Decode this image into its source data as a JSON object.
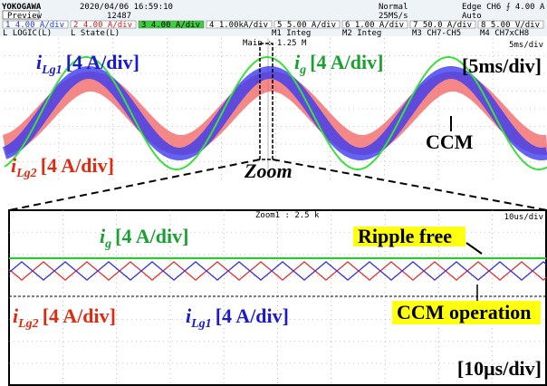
{
  "header": {
    "brand": "YOKOGAWA",
    "mode": "Preview",
    "datetime": "2020/04/06 16:59:10",
    "count": "12487",
    "trigger_mode": "Normal",
    "sample_rate": "25MS/s",
    "trigger": "Edge CH6 ⨍ 4.00 A",
    "trigger_auto": "Auto"
  },
  "channels": [
    "1 4.00 A/div",
    "2 4.00 A/div",
    "3 4.00 A/div",
    "4 1.00kA/div",
    "5 5.00 A/div",
    "6 1.00 A/div",
    "7 50.0 A/div",
    "8 5.00 V/div"
  ],
  "math": [
    "L LOGIC(L)",
    "L State(L)",
    "M1 Integ",
    "M2 Integ",
    "M3 CH7-CH5",
    "M4 CH7xCH8"
  ],
  "main_panel": {
    "info": "Main : 1.25 M",
    "timebase": "5ms/div",
    "labels": {
      "ilg1": {
        "symbol": "i",
        "subscript": "Lg1",
        "scale": "[4 A/div]"
      },
      "ig": {
        "symbol": "i",
        "subscript": "g",
        "scale": "[4 A/div]"
      },
      "ilg2": {
        "symbol": "i",
        "subscript": "Lg2",
        "scale": "[4 A/div]"
      }
    },
    "scale_note": "[5ms/div]",
    "ccm": "CCM",
    "zoom": "Zoom"
  },
  "zoom_panel": {
    "info": "Zoom1 : 2.5 k",
    "timebase": "10us/div",
    "labels": {
      "ig": {
        "symbol": "i",
        "subscript": "g",
        "scale": "[4 A/div]"
      },
      "ilg2": {
        "symbol": "i",
        "subscript": "Lg2",
        "scale": "[4 A/div]"
      },
      "ilg1": {
        "symbol": "i",
        "subscript": "Lg1",
        "scale": "[4 A/div]"
      }
    },
    "ripple_free": "Ripple free",
    "ccm_operation": "CCM operation",
    "scale_note": "[10μs/div]"
  }
}
